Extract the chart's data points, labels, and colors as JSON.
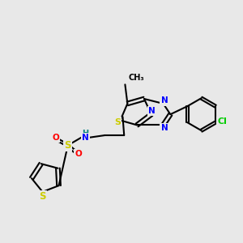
{
  "bg_color": "#e8e8e8",
  "atom_colors": {
    "C": "#000000",
    "N": "#0000ff",
    "S": "#cccc00",
    "O": "#ff0000",
    "H": "#008080",
    "Cl": "#00cc00"
  },
  "bond_color": "#000000"
}
